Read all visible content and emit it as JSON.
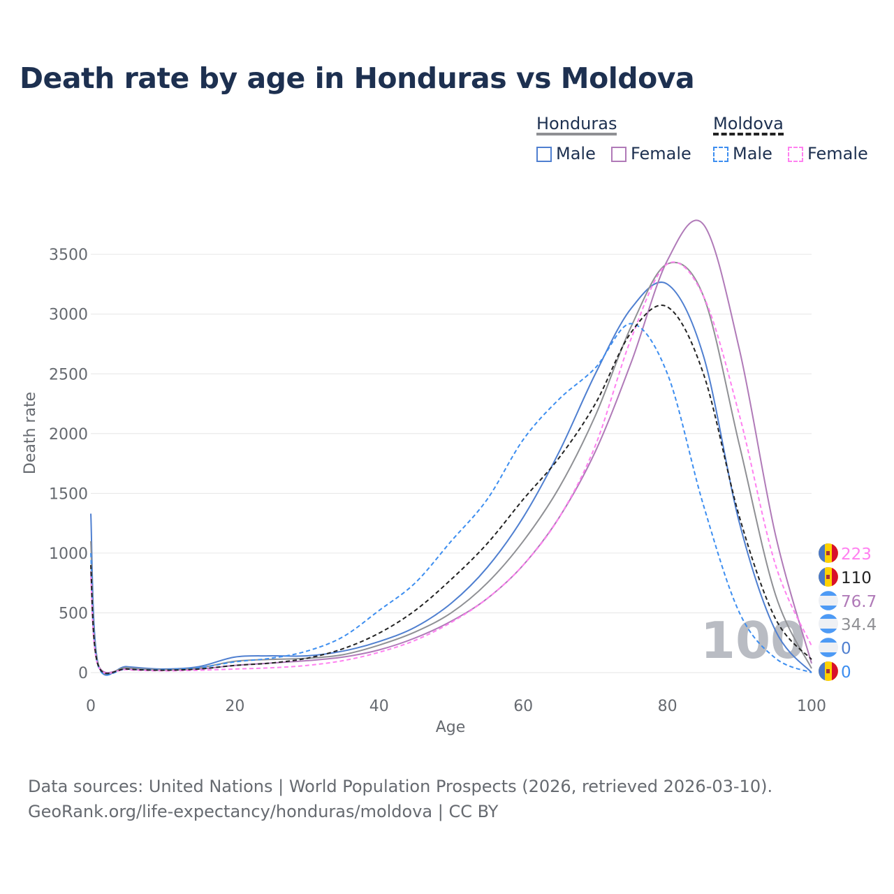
{
  "title": "Death rate by age in Honduras vs Moldova",
  "legend": {
    "groups": [
      {
        "name": "Honduras",
        "items": [
          "Male",
          "Female"
        ]
      },
      {
        "name": "Moldova",
        "items": [
          "Male",
          "Female"
        ]
      }
    ]
  },
  "source": {
    "line1": "Data sources: United Nations | World Population Prospects (2026, retrieved 2026-03-10).",
    "line2": "GeoRank.org/life-expectancy/honduras/moldova | CC BY"
  },
  "watermark": "100",
  "chart_data": {
    "type": "line",
    "title": "Death rate by age in Honduras vs Moldova",
    "xlabel": "Age",
    "ylabel": "Death rate",
    "xlim": [
      0,
      100
    ],
    "ylim": [
      0,
      3900
    ],
    "xticks": [
      0,
      20,
      40,
      60,
      80,
      100
    ],
    "yticks": [
      0,
      500,
      1000,
      1500,
      2000,
      2500,
      3000,
      3500
    ],
    "grid": true,
    "x": [
      0,
      1,
      5,
      10,
      15,
      20,
      25,
      30,
      35,
      40,
      45,
      50,
      55,
      60,
      65,
      70,
      75,
      80,
      85,
      90,
      95,
      100
    ],
    "series": [
      {
        "name": "Honduras Male",
        "color": "#4f7fd0",
        "dash": false,
        "end_label": "0",
        "values": [
          1330,
          80,
          50,
          30,
          50,
          130,
          140,
          140,
          180,
          260,
          380,
          580,
          880,
          1300,
          1850,
          2500,
          3050,
          3250,
          2650,
          1250,
          350,
          0
        ]
      },
      {
        "name": "Honduras Female",
        "color": "#b07ab8",
        "dash": false,
        "end_label": "76.7",
        "values": [
          850,
          70,
          30,
          20,
          30,
          60,
          80,
          100,
          130,
          190,
          290,
          430,
          620,
          900,
          1300,
          1850,
          2600,
          3450,
          3750,
          2700,
          1150,
          76.7
        ]
      },
      {
        "name": "Honduras Total",
        "color": "#8f9094",
        "dash": false,
        "end_label": "34.4",
        "values": [
          1100,
          75,
          40,
          25,
          40,
          95,
          110,
          120,
          150,
          230,
          340,
          500,
          750,
          1100,
          1550,
          2150,
          2900,
          3420,
          3150,
          1900,
          650,
          34.4
        ]
      },
      {
        "name": "Moldova Male",
        "color": "#3d8ef0",
        "dash": true,
        "end_label": "0",
        "values": [
          1000,
          60,
          30,
          25,
          40,
          90,
          120,
          180,
          300,
          520,
          750,
          1100,
          1450,
          1950,
          2290,
          2550,
          2920,
          2500,
          1400,
          500,
          120,
          0
        ]
      },
      {
        "name": "Moldova Female",
        "color": "#ff80f0",
        "dash": true,
        "end_label": "223",
        "values": [
          800,
          60,
          25,
          15,
          20,
          30,
          40,
          60,
          100,
          170,
          270,
          420,
          620,
          900,
          1300,
          1900,
          2800,
          3420,
          3150,
          2150,
          900,
          223
        ]
      },
      {
        "name": "Moldova Total",
        "color": "#222222",
        "dash": true,
        "end_label": "110",
        "values": [
          900,
          65,
          30,
          20,
          30,
          60,
          80,
          120,
          200,
          330,
          520,
          780,
          1080,
          1450,
          1800,
          2250,
          2850,
          3060,
          2500,
          1300,
          450,
          110
        ]
      }
    ]
  }
}
